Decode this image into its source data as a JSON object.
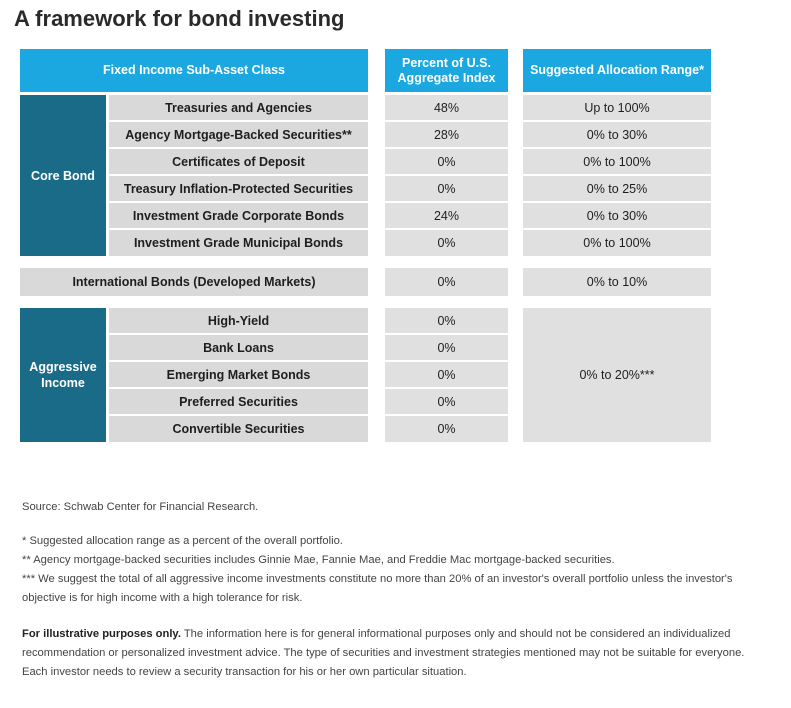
{
  "title": "A framework for bond investing",
  "header": {
    "col1": "Fixed Income Sub-Asset Class",
    "col2": "Percent of U.S. Aggregate Index",
    "col3": "Suggested Allocation Range*"
  },
  "core_bond": {
    "label": "Core Bond",
    "rows": [
      {
        "name": "Treasuries and Agencies",
        "percent": "48%",
        "range": "Up to 100%"
      },
      {
        "name": "Agency Mortgage-Backed Securities**",
        "percent": "28%",
        "range": "0% to 30%"
      },
      {
        "name": "Certificates of Deposit",
        "percent": "0%",
        "range": "0% to 100%"
      },
      {
        "name": "Treasury Inflation-Protected Securities",
        "percent": "0%",
        "range": "0% to 25%"
      },
      {
        "name": "Investment Grade Corporate Bonds",
        "percent": "24%",
        "range": "0% to 30%"
      },
      {
        "name": "Investment Grade Municipal Bonds",
        "percent": "0%",
        "range": "0% to 100%"
      }
    ]
  },
  "international": {
    "name": "International Bonds (Developed Markets)",
    "percent": "0%",
    "range": "0% to 10%"
  },
  "aggressive_income": {
    "label": "Aggressive Income",
    "range": "0% to 20%***",
    "rows": [
      {
        "name": "High-Yield",
        "percent": "0%"
      },
      {
        "name": "Bank Loans",
        "percent": "0%"
      },
      {
        "name": "Emerging Market Bonds",
        "percent": "0%"
      },
      {
        "name": "Preferred Securities",
        "percent": "0%"
      },
      {
        "name": "Convertible Securities",
        "percent": "0%"
      }
    ]
  },
  "footnotes": {
    "source": "Source: Schwab Center for Financial Research.",
    "note1": "* Suggested allocation range as a percent of the overall portfolio.",
    "note2": "** Agency mortgage-backed securities includes Ginnie Mae, Fannie Mae, and Freddie Mac mortgage-backed securities.",
    "note3": "*** We suggest the total of all aggressive income investments constitute no more than 20% of an investor's overall portfolio unless the investor's objective is for high income with a high tolerance for risk.",
    "disclaimer_bold": "For illustrative purposes only.",
    "disclaimer": " The information here is for general informational purposes only and should not be considered an individualized recommendation or personalized investment advice. The type of securities and investment strategies mentioned may not be suitable for everyone. Each investor needs to review a security transaction for his or her own particular situation."
  }
}
